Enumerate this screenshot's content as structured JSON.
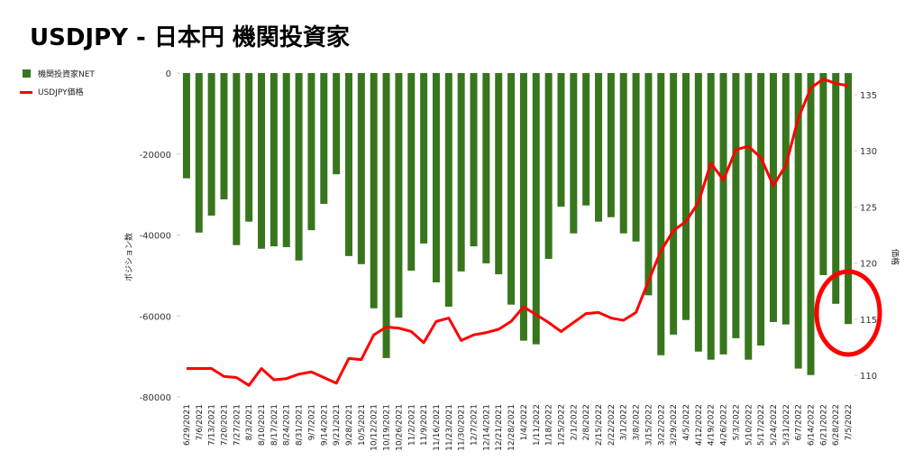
{
  "chart_data": {
    "type": "bar_line",
    "title": "USDJPY - 日本円 機関投資家",
    "y_label": "ポジション数",
    "y2_label": "価格",
    "categories": [
      "6/29/2021",
      "7/6/2021",
      "7/13/2021",
      "7/20/2021",
      "7/27/2021",
      "8/3/2021",
      "8/10/2021",
      "8/17/2021",
      "8/24/2021",
      "8/31/2021",
      "9/7/2021",
      "9/14/2021",
      "9/21/2021",
      "9/28/2021",
      "10/5/2021",
      "10/12/2021",
      "10/19/2021",
      "10/26/2021",
      "11/2/2021",
      "11/9/2021",
      "11/16/2021",
      "11/23/2021",
      "11/30/2021",
      "12/7/2021",
      "12/14/2021",
      "12/21/2021",
      "12/28/2021",
      "1/4/2022",
      "1/11/2022",
      "1/18/2022",
      "1/25/2022",
      "2/1/2022",
      "2/8/2022",
      "2/15/2022",
      "2/22/2022",
      "3/1/2022",
      "3/8/2022",
      "3/15/2022",
      "3/22/2022",
      "3/29/2022",
      "4/5/2022",
      "4/12/2022",
      "4/19/2022",
      "4/26/2022",
      "5/3/2022",
      "5/10/2022",
      "5/17/2022",
      "5/24/2022",
      "5/31/2022",
      "6/7/2022",
      "6/14/2022",
      "6/21/2022",
      "6/28/2022",
      "7/5/2022"
    ],
    "series": [
      {
        "name": "機関投資家NET",
        "color": "#38761d",
        "axis": "y",
        "values": [
          -26000,
          -39400,
          -35200,
          -31200,
          -42500,
          -36700,
          -43400,
          -42800,
          -43000,
          -46300,
          -38800,
          -32300,
          -25000,
          -45200,
          -47200,
          -58100,
          -70400,
          -60400,
          -48800,
          -42100,
          -51700,
          -57700,
          -49000,
          -42800,
          -47000,
          -49700,
          -57200,
          -66100,
          -67000,
          -45900,
          -33000,
          -39600,
          -32700,
          -36700,
          -35600,
          -39600,
          -41600,
          -54900,
          -69700,
          -64600,
          -61000,
          -68800,
          -70800,
          -69500,
          -65500,
          -70800,
          -67300,
          -61500,
          -62100,
          -73000,
          -74600,
          -49900,
          -57000,
          -62000
        ]
      },
      {
        "name": "USDJPY価格",
        "color": "#ff0000",
        "axis": "y2",
        "values": [
          110.6,
          110.6,
          110.6,
          109.9,
          109.8,
          109.1,
          110.6,
          109.6,
          109.7,
          110.1,
          110.3,
          109.8,
          109.3,
          111.5,
          111.4,
          113.6,
          114.3,
          114.2,
          113.9,
          112.9,
          114.8,
          115.1,
          113.1,
          113.6,
          113.8,
          114.1,
          114.8,
          116.1,
          115.4,
          114.7,
          113.9,
          114.7,
          115.5,
          115.6,
          115.1,
          114.9,
          115.6,
          118.4,
          121.1,
          122.9,
          123.7,
          125.4,
          128.9,
          127.4,
          130.1,
          130.4,
          129.4,
          126.9,
          128.7,
          132.9,
          135.6,
          136.4,
          136.0,
          135.8
        ]
      }
    ],
    "ylim": [
      -80000,
      0
    ],
    "yticks": [
      0,
      -20000,
      -40000,
      -60000,
      -80000
    ],
    "y2lim": [
      108.07,
      136.93
    ],
    "y2ticks": [
      110,
      115,
      120,
      125,
      130,
      135
    ],
    "legend": "top-left"
  }
}
